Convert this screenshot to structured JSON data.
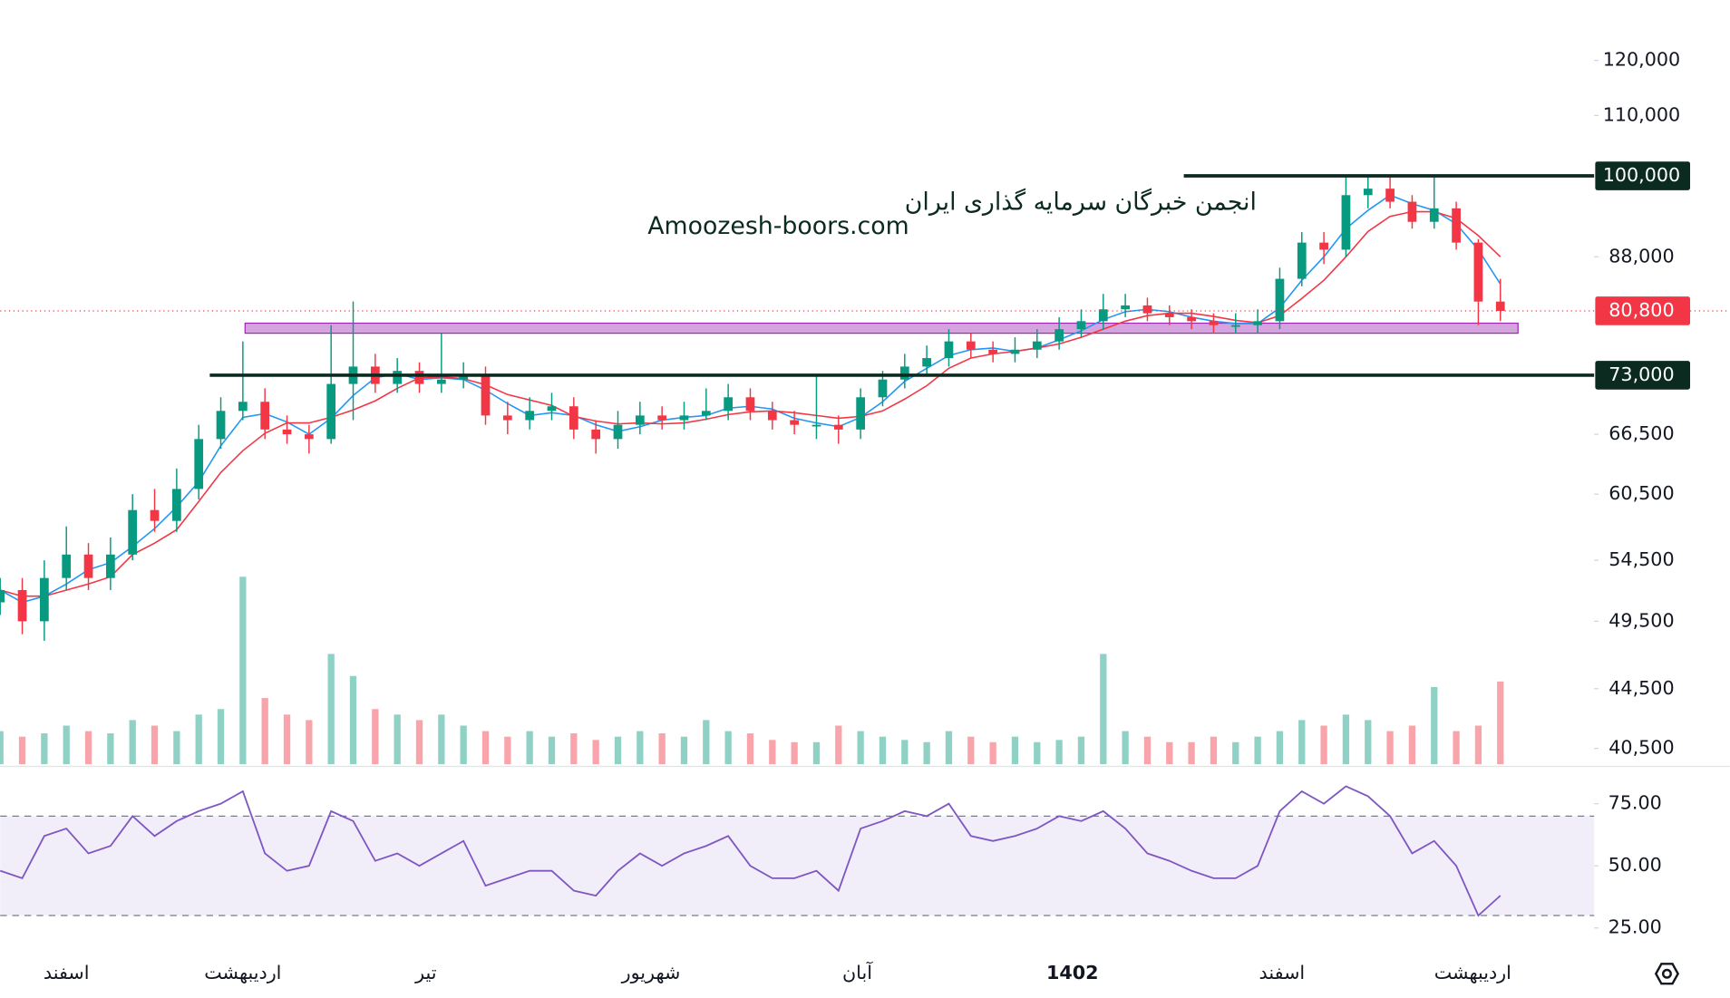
{
  "chart_data": {
    "type": "candlestick",
    "log_scale": true,
    "watermark": [
      "انجمن خبرگان سرمایه گذاری ایران",
      "Amoozesh-boors.com"
    ],
    "x_labels": [
      "اسفند",
      "اردیبهشت",
      "تیر",
      "شهریور",
      "آبان",
      "1402",
      "اسفند",
      "اردیبهشت"
    ],
    "up_color": "#089981",
    "down_color": "#f23645",
    "open": [
      51000,
      52000,
      49500,
      53000,
      55000,
      53000,
      55000,
      59000,
      58000,
      61000,
      66000,
      69000,
      70000,
      67000,
      66500,
      66000,
      72000,
      74000,
      72000,
      73500,
      72000,
      72500,
      73000,
      68500,
      68000,
      69000,
      69500,
      67000,
      66000,
      67500,
      68500,
      68000,
      68500,
      69000,
      70500,
      69000,
      68000,
      67500,
      67500,
      67000,
      70500,
      72500,
      74000,
      75000,
      77000,
      76000,
      75500,
      76000,
      77000,
      78500,
      79500,
      81000,
      81500,
      80500,
      80000,
      79500,
      79000,
      79000,
      79500,
      85000,
      90000,
      89000,
      97000,
      98000,
      96000,
      93000,
      95000,
      90000,
      82000
    ],
    "high": [
      53000,
      53000,
      54500,
      57500,
      56000,
      56500,
      60500,
      61000,
      63000,
      67500,
      70500,
      77000,
      71500,
      68500,
      67500,
      79000,
      82000,
      75500,
      75000,
      74500,
      78000,
      74500,
      74000,
      70000,
      70500,
      71000,
      70500,
      68000,
      69000,
      70000,
      69500,
      70000,
      71500,
      72000,
      71500,
      70000,
      69000,
      73000,
      68500,
      71500,
      73500,
      75500,
      76500,
      78500,
      78000,
      77000,
      77500,
      78500,
      80000,
      81000,
      83000,
      83000,
      82500,
      81500,
      81000,
      80500,
      80500,
      81000,
      86500,
      91500,
      91500,
      100000,
      100000,
      100000,
      97000,
      100000,
      96000,
      90500,
      85000
    ],
    "low": [
      50000,
      48500,
      48000,
      52000,
      52000,
      52000,
      54500,
      57000,
      57000,
      60000,
      65000,
      68000,
      66000,
      65500,
      64500,
      65500,
      68000,
      71000,
      71000,
      71000,
      71000,
      71500,
      67500,
      66500,
      67000,
      68000,
      66000,
      64500,
      65000,
      66500,
      67000,
      67000,
      68000,
      68000,
      68000,
      67000,
      66500,
      66000,
      65500,
      66000,
      69500,
      71500,
      73000,
      74000,
      75000,
      74500,
      74500,
      75000,
      76000,
      77500,
      78500,
      80000,
      79500,
      79000,
      78500,
      78000,
      78000,
      78000,
      78500,
      84000,
      87000,
      88000,
      95000,
      95000,
      92000,
      92000,
      89000,
      79000,
      79500
    ],
    "close": [
      52000,
      49500,
      53000,
      55000,
      53000,
      55000,
      59000,
      58000,
      61000,
      66000,
      69000,
      70000,
      67000,
      66500,
      66000,
      72000,
      74000,
      72000,
      73500,
      72000,
      72500,
      73000,
      68500,
      68000,
      69000,
      69500,
      67000,
      66000,
      67500,
      68500,
      68000,
      68500,
      69000,
      70500,
      69000,
      68000,
      67500,
      67500,
      67000,
      70500,
      72500,
      74000,
      75000,
      77000,
      76000,
      75500,
      76000,
      77000,
      78500,
      79500,
      81000,
      81500,
      80500,
      80000,
      79500,
      79000,
      79000,
      79500,
      85000,
      90000,
      89000,
      97000,
      98000,
      96000,
      93000,
      95000,
      90000,
      82000,
      80800
    ],
    "volume": [
      30,
      25,
      28,
      35,
      30,
      28,
      40,
      35,
      30,
      45,
      50,
      170,
      60,
      45,
      40,
      100,
      80,
      50,
      45,
      40,
      45,
      35,
      30,
      25,
      30,
      25,
      28,
      22,
      25,
      30,
      28,
      25,
      40,
      30,
      28,
      22,
      20,
      20,
      35,
      30,
      25,
      22,
      20,
      30,
      25,
      20,
      25,
      20,
      22,
      25,
      100,
      30,
      25,
      20,
      20,
      25,
      20,
      25,
      30,
      40,
      35,
      45,
      40,
      30,
      35,
      70,
      30,
      35,
      75
    ],
    "lines": [
      {
        "color": "#2196f3",
        "values": [
          52000,
          51000,
          51500,
          52500,
          53700,
          54300,
          55700,
          57300,
          59300,
          61700,
          65300,
          68300,
          68700,
          67800,
          66500,
          68200,
          70700,
          72700,
          73200,
          72500,
          72700,
          72500,
          71300,
          69800,
          68500,
          68800,
          68500,
          67500,
          66800,
          67300,
          68000,
          68300,
          68500,
          69300,
          69500,
          69200,
          68200,
          67700,
          67300,
          68300,
          70000,
          72300,
          73800,
          75300,
          76000,
          76200,
          75800,
          76200,
          77200,
          78300,
          79700,
          80700,
          81000,
          80700,
          80000,
          79500,
          79200,
          79200,
          81200,
          84800,
          88000,
          92000,
          94700,
          97000,
          95700,
          94700,
          92700,
          89000,
          84300
        ]
      },
      {
        "color": "#f23645",
        "values": [
          52000,
          51500,
          51500,
          52000,
          52500,
          53100,
          55000,
          56000,
          57200,
          59800,
          62600,
          64800,
          66600,
          67700,
          67700,
          68300,
          69100,
          70100,
          71500,
          72700,
          72800,
          72600,
          71900,
          70800,
          70200,
          69600,
          68400,
          67900,
          67600,
          67700,
          67600,
          67700,
          68100,
          68600,
          68900,
          69000,
          68800,
          68500,
          68200,
          68400,
          69000,
          70300,
          71800,
          73800,
          75000,
          75500,
          75800,
          76200,
          76700,
          77500,
          78500,
          79500,
          80200,
          80500,
          80500,
          80100,
          79600,
          79300,
          80200,
          82400,
          84800,
          88000,
          91600,
          93800,
          94500,
          94500,
          93500,
          91000,
          88000
        ]
      }
    ],
    "ylim": [
      39500,
      132000
    ],
    "yticks": [
      {
        "value": 120000,
        "label": "120,000"
      },
      {
        "value": 110000,
        "label": "110,000"
      },
      {
        "value": 88000,
        "label": "88,000"
      },
      {
        "value": 66500,
        "label": "66,500"
      },
      {
        "value": 60500,
        "label": "60,500"
      },
      {
        "value": 54500,
        "label": "54,500"
      },
      {
        "value": 49500,
        "label": "49,500"
      },
      {
        "value": 44500,
        "label": "44,500"
      },
      {
        "value": 40500,
        "label": "40,500"
      }
    ],
    "levels": [
      {
        "value": 100000,
        "label": "100,000"
      },
      {
        "value": 73000,
        "label": "73,000"
      }
    ],
    "zone": [
      78000,
      79250
    ],
    "last": {
      "value": 80800,
      "label": "80,800"
    },
    "rsi": {
      "color": "#7e57c2",
      "ylim": [
        19,
        90
      ],
      "bands": [
        30,
        70
      ],
      "yticks": [
        {
          "value": 75,
          "label": "75.00"
        },
        {
          "value": 50,
          "label": "50.00"
        },
        {
          "value": 25,
          "label": "25.00"
        }
      ],
      "values": [
        48,
        45,
        62,
        65,
        55,
        58,
        70,
        62,
        68,
        72,
        75,
        80,
        55,
        48,
        50,
        72,
        68,
        52,
        55,
        50,
        55,
        60,
        42,
        45,
        48,
        48,
        40,
        38,
        48,
        55,
        50,
        55,
        58,
        62,
        50,
        45,
        45,
        48,
        40,
        65,
        68,
        72,
        70,
        75,
        62,
        60,
        62,
        65,
        70,
        68,
        72,
        65,
        55,
        52,
        48,
        45,
        45,
        50,
        72,
        80,
        75,
        82,
        78,
        70,
        55,
        60,
        50,
        30,
        38
      ]
    }
  }
}
